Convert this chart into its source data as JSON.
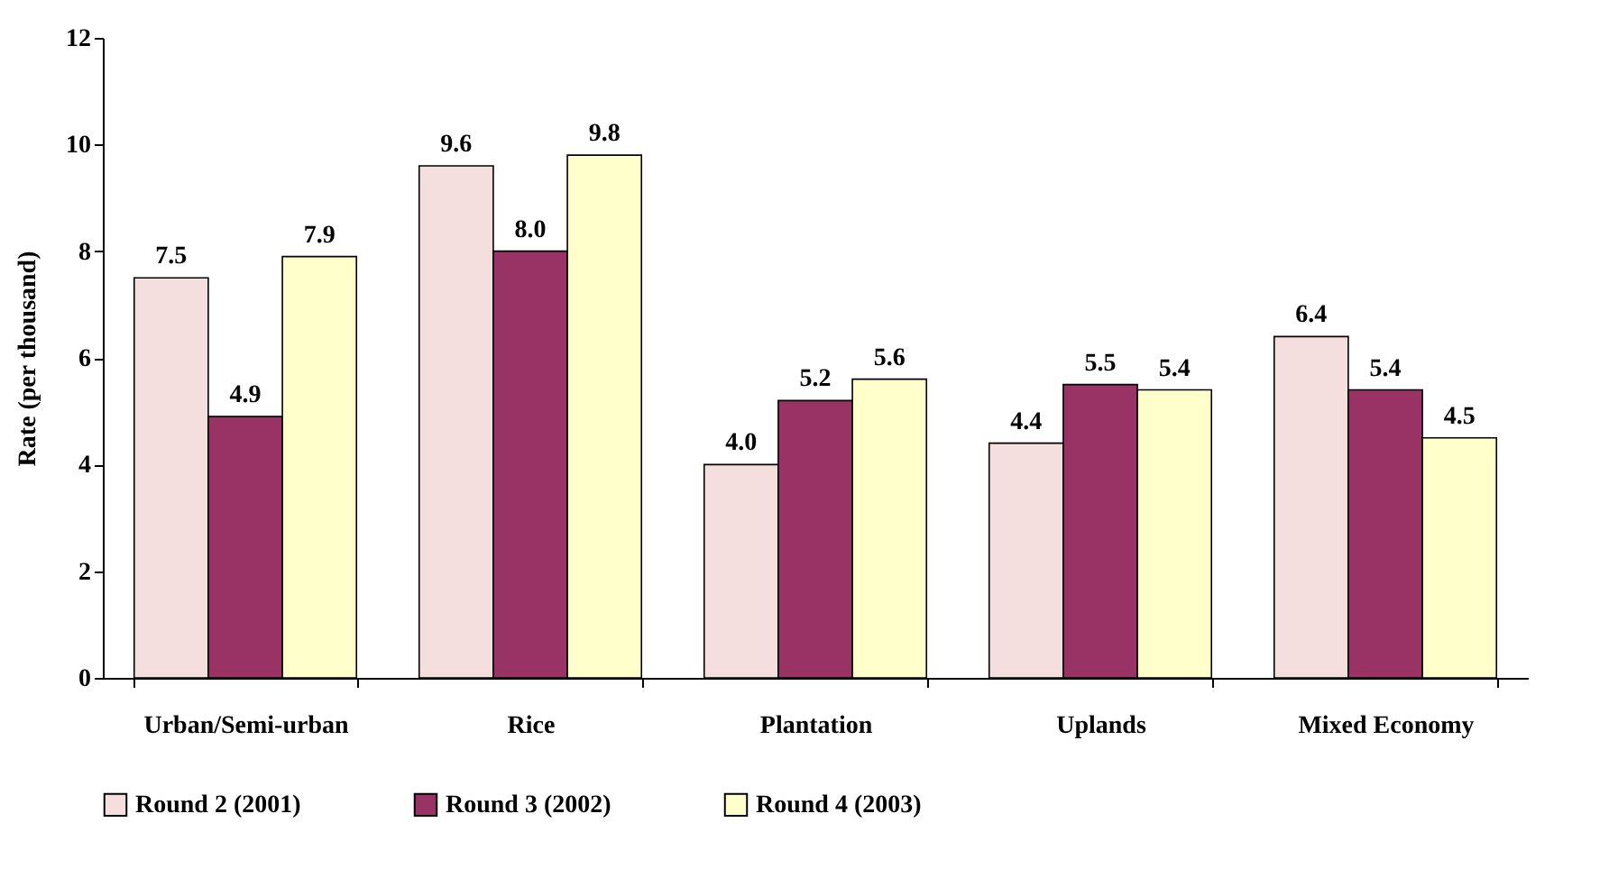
{
  "chart_data": {
    "type": "bar",
    "ylabel": "Rate (per thousand)",
    "categories": [
      "Urban/Semi-urban",
      "Rice",
      "Plantation",
      "Uplands",
      "Mixed Economy"
    ],
    "series": [
      {
        "name": "Round 2 (2001)",
        "color": "#f4dede",
        "values": [
          7.5,
          9.6,
          4.0,
          4.4,
          6.4
        ],
        "value_labels": [
          "7.5",
          "9.6",
          "4.0",
          "4.4",
          "6.4"
        ]
      },
      {
        "name": "Round 3 (2002)",
        "color": "#993366",
        "values": [
          4.9,
          8.0,
          5.2,
          5.5,
          5.4
        ],
        "value_labels": [
          "4.9",
          "8.0",
          "5.2",
          "5.5",
          "5.4"
        ]
      },
      {
        "name": "Round 4 (2003)",
        "color": "#ffffcc",
        "values": [
          7.9,
          9.8,
          5.6,
          5.4,
          4.5
        ],
        "value_labels": [
          "7.9",
          "9.8",
          "5.6",
          "5.4",
          "4.5"
        ]
      }
    ],
    "ylim": [
      0,
      12
    ],
    "yticks": [
      0,
      2,
      4,
      6,
      8,
      10,
      12
    ],
    "grid": false,
    "legend": "bottom"
  }
}
